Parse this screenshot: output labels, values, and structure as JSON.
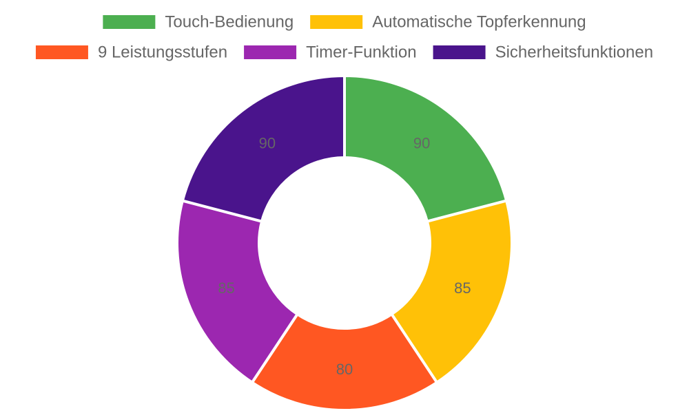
{
  "chart_data": {
    "type": "pie",
    "variant": "doughnut",
    "title": "",
    "legend_position": "top",
    "show_values": true,
    "categories": [
      "Touch-Bedienung",
      "Automatische Topferkennung",
      "9 Leistungsstufen",
      "Timer-Funktion",
      "Sicherheitsfunktionen"
    ],
    "values": [
      90,
      85,
      80,
      85,
      90
    ],
    "colors": [
      "#4caf50",
      "#ffc107",
      "#ff5722",
      "#9c27b0",
      "#4a148c"
    ]
  }
}
